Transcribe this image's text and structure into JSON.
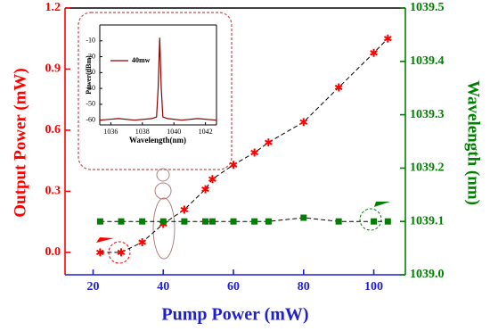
{
  "chart_data": [
    {
      "type": "line",
      "xlabel": "Pump Power (mW)",
      "ylabel": "Output  Power (mW)",
      "y2label": "Wavelength (nm)",
      "xlim": [
        12,
        109
      ],
      "xticks": [
        20,
        40,
        60,
        80,
        100
      ],
      "ylim": [
        -0.11,
        1.2
      ],
      "yticks": [
        {
          "value": 0,
          "label": "0.0"
        },
        0.3,
        0.6,
        0.9,
        1.2
      ],
      "y2lim": [
        1039.0,
        1039.5
      ],
      "y2ticks": [
        {
          "value": 1039,
          "label": "1039.0"
        },
        1039.1,
        1039.2,
        1039.3,
        1039.4,
        1039.5
      ],
      "series": [
        {
          "color": "#ff0000",
          "marker": "star",
          "linestyle": "dashed",
          "x": [
            22,
            28,
            34,
            40,
            46,
            52,
            54,
            60,
            66,
            70,
            80,
            90,
            100,
            104
          ],
          "values": [
            0.0,
            0.0,
            0.05,
            0.14,
            0.21,
            0.31,
            0.36,
            0.43,
            0.49,
            0.54,
            0.64,
            0.81,
            0.98,
            1.05
          ]
        },
        {
          "color": "#008000",
          "marker": "square",
          "linestyle": "dashed",
          "axis": "y2",
          "x": [
            22,
            28,
            34,
            40,
            46,
            52,
            54,
            60,
            66,
            70,
            80,
            90,
            100,
            104
          ],
          "values": [
            1039.1,
            1039.1,
            1039.1,
            1039.1,
            1039.1,
            1039.1,
            1039.1,
            1039.1,
            1039.1,
            1039.1,
            1039.107,
            1039.1,
            1039.1,
            1039.1
          ]
        }
      ]
    },
    {
      "type": "line",
      "xlabel": "Wavelength(nm)",
      "ylabel": "Power(dBm)",
      "xlim": [
        1035.3,
        1042.7
      ],
      "xticks": [
        1036,
        1038,
        1040,
        1042
      ],
      "ylim": [
        -63,
        0
      ],
      "yticks": [
        -10,
        -20,
        -30,
        -40,
        -50,
        -60
      ],
      "series": [
        {
          "name": "40mw",
          "color": "#8b0000",
          "linestyle": "solid",
          "x": [
            1035.3,
            1036.5,
            1037.5,
            1038.6,
            1038.9,
            1039.0,
            1039.1,
            1039.2,
            1039.3,
            1039.6,
            1040.5,
            1041.5,
            1042.7
          ],
          "values": [
            -60,
            -59,
            -60,
            -59,
            -58,
            -40,
            -8,
            -40,
            -58,
            -59,
            -60,
            -59,
            -60
          ]
        }
      ]
    }
  ]
}
